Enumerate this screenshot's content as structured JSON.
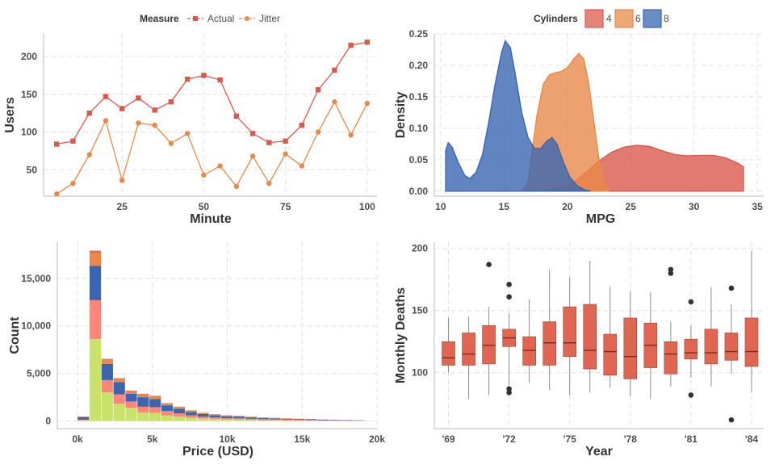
{
  "chart_data": [
    {
      "type": "line",
      "xlabel": "Minute",
      "ylabel": "Users",
      "xlim": [
        1,
        103
      ],
      "ylim": [
        15,
        230
      ],
      "xticks": [
        25,
        50,
        75,
        100
      ],
      "yticks": [
        50,
        100,
        150,
        200
      ],
      "xtick_labels": [
        "25",
        "50",
        "75",
        "100"
      ],
      "ytick_labels": [
        "50",
        "100",
        "150",
        "200"
      ],
      "grid": true,
      "legend": {
        "title": "Measure",
        "position": "top"
      },
      "x": [
        5,
        10,
        15,
        20,
        25,
        30,
        35,
        40,
        45,
        50,
        55,
        60,
        65,
        70,
        75,
        80,
        85,
        90,
        95,
        100
      ],
      "series": [
        {
          "name": "Actual",
          "color": "#d9594c",
          "marker": "square",
          "values": [
            84,
            88,
            125,
            147,
            131,
            145,
            129,
            140,
            170,
            175,
            169,
            121,
            98,
            86,
            88,
            109,
            156,
            182,
            215,
            219
          ]
        },
        {
          "name": "Jitter",
          "color": "#e8894a",
          "marker": "circle",
          "values": [
            18,
            32,
            70,
            115,
            36,
            112,
            109,
            85,
            98,
            43,
            55,
            28,
            68,
            32,
            71,
            55,
            100,
            140,
            96,
            138
          ]
        }
      ]
    },
    {
      "type": "area",
      "xlabel": "MPG",
      "ylabel": "Density",
      "xlim": [
        9.5,
        35.5
      ],
      "ylim": [
        -0.008,
        0.25
      ],
      "xticks": [
        10,
        15,
        20,
        25,
        30,
        35
      ],
      "yticks": [
        0,
        0.05,
        0.1,
        0.15,
        0.2,
        0.25
      ],
      "xtick_labels": [
        "10",
        "15",
        "20",
        "25",
        "30",
        "35"
      ],
      "ytick_labels": [
        "0.00",
        "0.05",
        "0.10",
        "0.15",
        "0.20",
        "0.25"
      ],
      "grid": true,
      "legend": {
        "title": "Cylinders",
        "position": "top"
      },
      "series": [
        {
          "name": "4",
          "color": "#d9594c",
          "points": [
            [
              17.5,
              0
            ],
            [
              18.5,
              0.002
            ],
            [
              19.5,
              0.006
            ],
            [
              20.5,
              0.015
            ],
            [
              21.5,
              0.03
            ],
            [
              22.5,
              0.048
            ],
            [
              23.5,
              0.062
            ],
            [
              24.5,
              0.07
            ],
            [
              25.5,
              0.073
            ],
            [
              26.5,
              0.071
            ],
            [
              27.5,
              0.064
            ],
            [
              28.5,
              0.058
            ],
            [
              29.5,
              0.056
            ],
            [
              30.5,
              0.057
            ],
            [
              31.5,
              0.057
            ],
            [
              32.5,
              0.053
            ],
            [
              33.5,
              0.044
            ],
            [
              33.9,
              0.039
            ],
            [
              33.9,
              0
            ]
          ]
        },
        {
          "name": "6",
          "color": "#e8894a",
          "points": [
            [
              16.5,
              0
            ],
            [
              16.9,
              0.015
            ],
            [
              17.2,
              0.06
            ],
            [
              17.6,
              0.12
            ],
            [
              18.1,
              0.17
            ],
            [
              18.6,
              0.185
            ],
            [
              19.0,
              0.188
            ],
            [
              19.5,
              0.19
            ],
            [
              20.0,
              0.196
            ],
            [
              20.5,
              0.21
            ],
            [
              20.9,
              0.219
            ],
            [
              21.3,
              0.21
            ],
            [
              21.7,
              0.17
            ],
            [
              22.1,
              0.11
            ],
            [
              22.5,
              0.05
            ],
            [
              22.9,
              0.015
            ],
            [
              23.3,
              0
            ]
          ]
        },
        {
          "name": "8",
          "color": "#3a66b0",
          "points": [
            [
              10.4,
              0
            ],
            [
              10.4,
              0.065
            ],
            [
              10.6,
              0.077
            ],
            [
              10.9,
              0.07
            ],
            [
              11.4,
              0.045
            ],
            [
              11.9,
              0.025
            ],
            [
              12.3,
              0.02
            ],
            [
              12.8,
              0.03
            ],
            [
              13.3,
              0.058
            ],
            [
              13.8,
              0.11
            ],
            [
              14.3,
              0.17
            ],
            [
              14.8,
              0.22
            ],
            [
              15.1,
              0.239
            ],
            [
              15.5,
              0.228
            ],
            [
              15.9,
              0.185
            ],
            [
              16.4,
              0.125
            ],
            [
              16.9,
              0.085
            ],
            [
              17.4,
              0.068
            ],
            [
              17.9,
              0.068
            ],
            [
              18.4,
              0.08
            ],
            [
              18.8,
              0.085
            ],
            [
              19.2,
              0.074
            ],
            [
              19.7,
              0.045
            ],
            [
              20.2,
              0.022
            ],
            [
              20.8,
              0.008
            ],
            [
              21.4,
              0.002
            ],
            [
              21.8,
              0
            ]
          ]
        }
      ]
    },
    {
      "type": "bar",
      "stacked": true,
      "xlabel": "Price (USD)",
      "ylabel": "Count",
      "xlim": [
        -1350,
        20000
      ],
      "ylim": [
        -800,
        18800
      ],
      "xticks": [
        0,
        5000,
        10000,
        15000,
        20000
      ],
      "yticks": [
        0,
        5000,
        10000,
        15000
      ],
      "xtick_labels": [
        "0k",
        "5k",
        "10k",
        "15k",
        "20k"
      ],
      "ytick_labels": [
        "0",
        "5,000",
        "10,000",
        "15,000"
      ],
      "grid": true,
      "bin_edges": [
        0,
        800,
        1600,
        2400,
        3200,
        4000,
        4800,
        5600,
        6400,
        7200,
        8000,
        8800,
        9600,
        10400,
        11200,
        12000,
        12800,
        13600,
        14400,
        15200,
        16000,
        16800,
        17600,
        18400,
        19200
      ],
      "series": [
        {
          "color": "#c9e26a",
          "values": [
            80,
            8600,
            3000,
            1800,
            1400,
            900,
            850,
            600,
            450,
            350,
            250,
            200,
            150,
            150,
            110,
            90,
            80,
            70,
            60,
            50,
            40,
            30,
            30,
            20
          ]
        },
        {
          "color": "#ff8678",
          "values": [
            60,
            4100,
            1300,
            1000,
            650,
            600,
            600,
            450,
            350,
            250,
            200,
            180,
            150,
            130,
            120,
            100,
            90,
            80,
            70,
            60,
            50,
            40,
            40,
            30
          ]
        },
        {
          "color": "#3a66b0",
          "values": [
            280,
            3600,
            1700,
            1300,
            800,
            1000,
            850,
            600,
            500,
            350,
            280,
            230,
            200,
            180,
            150,
            130,
            110,
            90,
            80,
            70,
            60,
            50,
            40,
            30
          ]
        },
        {
          "color": "#e8894a",
          "values": [
            40,
            1400,
            450,
            350,
            300,
            300,
            300,
            200,
            180,
            150,
            120,
            100,
            90,
            80,
            60,
            50,
            50,
            40,
            30,
            30,
            20,
            20,
            10,
            10
          ]
        },
        {
          "color": "#e06651",
          "values": [
            15,
            200,
            80,
            60,
            50,
            60,
            50,
            40,
            30,
            25,
            20,
            18,
            15,
            15,
            12,
            10,
            8,
            8,
            6,
            5,
            5,
            4,
            4,
            3
          ]
        }
      ]
    },
    {
      "type": "box",
      "xlabel": "Year",
      "ylabel": "Monthly Deaths",
      "xlim": [
        -0.7,
        15.6
      ],
      "ylim": [
        55,
        205
      ],
      "categories": [
        "1969",
        "1970",
        "1971",
        "1972",
        "1973",
        "1974",
        "1975",
        "1976",
        "1977",
        "1978",
        "1979",
        "1980",
        "1981",
        "1982",
        "1983",
        "1984"
      ],
      "xticks": [
        0,
        3,
        6,
        9,
        12,
        15
      ],
      "yticks": [
        100,
        150,
        200
      ],
      "xtick_labels": [
        "'69",
        "'72",
        "'75",
        "'78",
        "'81",
        "'84"
      ],
      "ytick_labels": [
        "100",
        "150",
        "200"
      ],
      "grid": true,
      "color": "#e06651",
      "boxes": [
        {
          "low": 100,
          "q1": 106,
          "median": 112,
          "q3": 125,
          "high": 144,
          "outliers": []
        },
        {
          "low": 79,
          "q1": 106,
          "median": 115,
          "q3": 132,
          "high": 145,
          "outliers": []
        },
        {
          "low": 82,
          "q1": 107,
          "median": 122,
          "q3": 138,
          "high": 153,
          "outliers": [
            187
          ]
        },
        {
          "low": 90,
          "q1": 121,
          "median": 128,
          "q3": 135,
          "high": 148,
          "outliers": [
            171,
            161,
            87,
            84
          ]
        },
        {
          "low": 92,
          "q1": 106,
          "median": 118,
          "q3": 129,
          "high": 159,
          "outliers": []
        },
        {
          "low": 86,
          "q1": 106,
          "median": 124,
          "q3": 141,
          "high": 183,
          "outliers": []
        },
        {
          "low": 82,
          "q1": 113,
          "median": 124,
          "q3": 153,
          "high": 177,
          "outliers": []
        },
        {
          "low": 84,
          "q1": 103,
          "median": 118,
          "q3": 155,
          "high": 190,
          "outliers": []
        },
        {
          "low": 88,
          "q1": 98,
          "median": 117,
          "q3": 131,
          "high": 169,
          "outliers": []
        },
        {
          "low": 81,
          "q1": 95,
          "median": 113,
          "q3": 144,
          "high": 166,
          "outliers": []
        },
        {
          "low": 79,
          "q1": 104,
          "median": 122,
          "q3": 140,
          "high": 165,
          "outliers": []
        },
        {
          "low": 89,
          "q1": 99,
          "median": 115,
          "q3": 125,
          "high": 141,
          "outliers": [
            183,
            180
          ]
        },
        {
          "low": 96,
          "q1": 111,
          "median": 116,
          "q3": 127,
          "high": 138,
          "outliers": [
            157,
            82
          ]
        },
        {
          "low": 89,
          "q1": 107,
          "median": 116,
          "q3": 135,
          "high": 169,
          "outliers": []
        },
        {
          "low": 99,
          "q1": 110,
          "median": 117,
          "q3": 132,
          "high": 155,
          "outliers": [
            168,
            62
          ]
        },
        {
          "low": 84,
          "q1": 105,
          "median": 117,
          "q3": 144,
          "high": 198,
          "outliers": []
        }
      ]
    }
  ]
}
